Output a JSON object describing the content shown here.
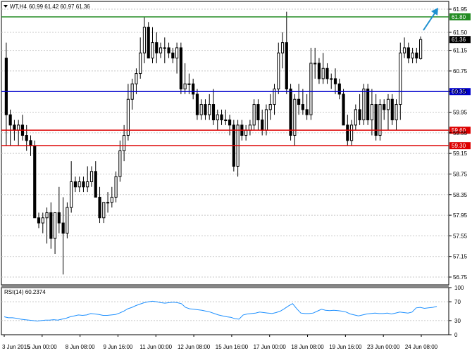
{
  "chart_data": {
    "type": "candlestick",
    "symbol": "WT,H4",
    "ohlc_header": "60.99 61.42 60.97 61.36",
    "price_axis": {
      "range": [
        56.6,
        62.1
      ],
      "ticks": [
        "61.95",
        "61.50",
        "61.15",
        "60.75",
        "60.35",
        "59.95",
        "59.55",
        "59.15",
        "58.75",
        "58.35",
        "57.95",
        "57.55",
        "57.15",
        "56.75"
      ]
    },
    "levels": [
      {
        "label": "61.80",
        "value": 61.8,
        "color": "#228b22"
      },
      {
        "label": "60.35",
        "value": 60.35,
        "color": "#0000cc"
      },
      {
        "label": "59.60",
        "value": 59.6,
        "color": "#dd0000"
      },
      {
        "label": "59.30",
        "value": 59.3,
        "color": "#dd0000"
      }
    ],
    "current_price": {
      "label": "61.36",
      "value": 61.36
    },
    "trend_arrow_color": "#1e90d0",
    "candles": [
      [
        61.0,
        61.3,
        59.3,
        59.9
      ],
      [
        59.9,
        60.0,
        59.3,
        59.7
      ],
      [
        59.7,
        59.8,
        59.4,
        59.6
      ],
      [
        59.6,
        59.8,
        59.3,
        59.7
      ],
      [
        59.7,
        59.9,
        59.4,
        59.5
      ],
      [
        59.5,
        59.7,
        59.2,
        59.4
      ],
      [
        59.4,
        59.5,
        59.1,
        59.3
      ],
      [
        59.3,
        59.4,
        57.9,
        57.9
      ],
      [
        57.9,
        58.0,
        57.7,
        57.8
      ],
      [
        57.8,
        58.0,
        57.6,
        57.9
      ],
      [
        57.9,
        58.1,
        57.4,
        58.0
      ],
      [
        58.0,
        58.2,
        57.3,
        57.5
      ],
      [
        57.5,
        58.0,
        57.2,
        58.0
      ],
      [
        58.0,
        58.5,
        57.6,
        57.8
      ],
      [
        57.8,
        58.3,
        56.8,
        57.6
      ],
      [
        57.6,
        58.2,
        57.5,
        58.1
      ],
      [
        58.1,
        59.0,
        58.0,
        58.6
      ],
      [
        58.6,
        58.7,
        58.4,
        58.5
      ],
      [
        58.5,
        58.7,
        58.4,
        58.6
      ],
      [
        58.6,
        58.7,
        58.4,
        58.5
      ],
      [
        58.5,
        58.9,
        58.4,
        58.6
      ],
      [
        58.6,
        58.9,
        58.5,
        58.8
      ],
      [
        58.8,
        59.0,
        58.3,
        58.3
      ],
      [
        58.3,
        58.5,
        57.8,
        57.9
      ],
      [
        57.9,
        58.2,
        57.8,
        58.2
      ],
      [
        58.2,
        58.4,
        58.0,
        58.2
      ],
      [
        58.2,
        58.5,
        58.1,
        58.3
      ],
      [
        58.3,
        58.8,
        58.2,
        58.7
      ],
      [
        58.7,
        59.4,
        58.6,
        59.2
      ],
      [
        59.2,
        59.7,
        59.0,
        59.5
      ],
      [
        59.5,
        60.5,
        59.4,
        60.2
      ],
      [
        60.2,
        60.6,
        60.0,
        60.5
      ],
      [
        60.5,
        60.8,
        60.3,
        60.7
      ],
      [
        60.7,
        61.4,
        60.6,
        61.1
      ],
      [
        61.1,
        61.8,
        60.9,
        61.6
      ],
      [
        61.6,
        61.7,
        61.0,
        61.0
      ],
      [
        61.0,
        61.6,
        60.9,
        61.3
      ],
      [
        61.3,
        61.5,
        60.9,
        61.1
      ],
      [
        61.1,
        61.3,
        61.0,
        61.2
      ],
      [
        61.2,
        61.4,
        60.9,
        61.2
      ],
      [
        61.2,
        61.3,
        61.0,
        61.1
      ],
      [
        61.1,
        61.2,
        60.9,
        61.0
      ],
      [
        61.0,
        61.3,
        60.7,
        61.2
      ],
      [
        61.2,
        61.3,
        60.3,
        60.4
      ],
      [
        60.4,
        60.9,
        60.3,
        60.5
      ],
      [
        60.5,
        60.7,
        60.3,
        60.5
      ],
      [
        60.5,
        60.6,
        60.2,
        60.3
      ],
      [
        60.3,
        60.4,
        59.8,
        59.9
      ],
      [
        59.9,
        60.2,
        59.8,
        60.1
      ],
      [
        60.1,
        60.2,
        59.8,
        59.9
      ],
      [
        59.9,
        60.3,
        59.8,
        60.1
      ],
      [
        60.1,
        60.4,
        59.7,
        59.8
      ],
      [
        59.8,
        60.0,
        59.6,
        59.9
      ],
      [
        59.9,
        60.0,
        59.7,
        59.8
      ],
      [
        59.8,
        60.0,
        59.7,
        59.8
      ],
      [
        59.8,
        59.9,
        59.5,
        59.7
      ],
      [
        59.7,
        59.8,
        58.8,
        58.9
      ],
      [
        58.9,
        59.8,
        58.7,
        59.7
      ],
      [
        59.7,
        59.8,
        59.4,
        59.5
      ],
      [
        59.5,
        59.7,
        59.4,
        59.6
      ],
      [
        59.6,
        59.8,
        59.5,
        59.7
      ],
      [
        59.7,
        60.2,
        59.6,
        60.1
      ],
      [
        60.1,
        60.2,
        59.6,
        59.8
      ],
      [
        59.8,
        60.0,
        59.5,
        59.6
      ],
      [
        59.6,
        60.1,
        59.5,
        60.0
      ],
      [
        60.0,
        60.3,
        59.8,
        60.1
      ],
      [
        60.1,
        60.5,
        59.9,
        60.4
      ],
      [
        60.4,
        61.3,
        60.3,
        61.1
      ],
      [
        61.1,
        61.5,
        60.8,
        61.3
      ],
      [
        61.3,
        61.9,
        60.3,
        60.4
      ],
      [
        60.4,
        60.5,
        59.4,
        59.5
      ],
      [
        59.5,
        60.3,
        59.3,
        60.2
      ],
      [
        60.2,
        60.5,
        59.9,
        60.1
      ],
      [
        60.1,
        60.4,
        59.9,
        60.0
      ],
      [
        60.0,
        60.3,
        59.8,
        59.9
      ],
      [
        59.9,
        61.2,
        59.8,
        60.9
      ],
      [
        60.9,
        61.2,
        60.6,
        60.9
      ],
      [
        60.9,
        61.0,
        60.5,
        60.6
      ],
      [
        60.6,
        61.1,
        60.5,
        60.8
      ],
      [
        60.8,
        60.9,
        60.5,
        60.6
      ],
      [
        60.6,
        60.7,
        60.4,
        60.6
      ],
      [
        60.6,
        60.8,
        60.3,
        60.5
      ],
      [
        60.5,
        60.6,
        60.2,
        60.3
      ],
      [
        60.3,
        60.4,
        59.7,
        59.7
      ],
      [
        59.7,
        59.9,
        59.3,
        59.4
      ],
      [
        59.4,
        59.8,
        59.3,
        59.7
      ],
      [
        59.7,
        60.1,
        59.6,
        60.0
      ],
      [
        60.0,
        60.3,
        59.7,
        59.8
      ],
      [
        59.8,
        60.5,
        59.7,
        60.4
      ],
      [
        60.4,
        60.5,
        59.7,
        59.8
      ],
      [
        59.8,
        60.4,
        59.5,
        60.1
      ],
      [
        60.1,
        60.3,
        59.4,
        59.5
      ],
      [
        59.5,
        60.2,
        59.4,
        60.1
      ],
      [
        60.1,
        60.2,
        59.8,
        60.0
      ],
      [
        60.0,
        60.3,
        59.6,
        60.2
      ],
      [
        60.2,
        60.3,
        59.7,
        59.8
      ],
      [
        59.8,
        60.2,
        59.6,
        60.1
      ],
      [
        60.1,
        61.3,
        59.8,
        61.1
      ],
      [
        61.1,
        61.4,
        61.0,
        61.2
      ],
      [
        61.2,
        61.3,
        60.9,
        61.0
      ],
      [
        61.0,
        61.2,
        60.9,
        61.1
      ],
      [
        61.1,
        61.2,
        60.9,
        61.0
      ],
      [
        60.99,
        61.42,
        60.97,
        61.36
      ]
    ],
    "x_labels": [
      "3 Jun 2015",
      "5 Jun 00:00",
      "8 Jun 08:00",
      "9 Jun 16:00",
      "11 Jun 00:00",
      "12 Jun 08:00",
      "15 Jun 16:00",
      "17 Jun 00:00",
      "18 Jun 08:00",
      "19 Jun 16:00",
      "23 Jun 00:00",
      "24 Jun 08:00"
    ],
    "rsi": {
      "label": "RSI(14) 60.2374",
      "range": [
        0,
        100
      ],
      "ticks": [
        "100",
        "70",
        "30",
        "0"
      ],
      "values": [
        38,
        36,
        36,
        35,
        33,
        32,
        31,
        30,
        29,
        30,
        31,
        31,
        32,
        31,
        33,
        35,
        38,
        40,
        42,
        41,
        42,
        45,
        44,
        43,
        41,
        41,
        42,
        43,
        46,
        50,
        55,
        58,
        62,
        65,
        68,
        70,
        71,
        70,
        68,
        67,
        68,
        69,
        68,
        66,
        58,
        55,
        54,
        53,
        52,
        50,
        48,
        45,
        42,
        40,
        38,
        37,
        34,
        33,
        42,
        44,
        45,
        46,
        48,
        47,
        46,
        45,
        47,
        50,
        55,
        61,
        66,
        55,
        46,
        45,
        45,
        46,
        50,
        54,
        52,
        51,
        52,
        51,
        50,
        48,
        44,
        42,
        40,
        42,
        44,
        45,
        46,
        45,
        45,
        46,
        44,
        46,
        48,
        47,
        46,
        48,
        57,
        58,
        56,
        57,
        58,
        60
      ]
    }
  }
}
